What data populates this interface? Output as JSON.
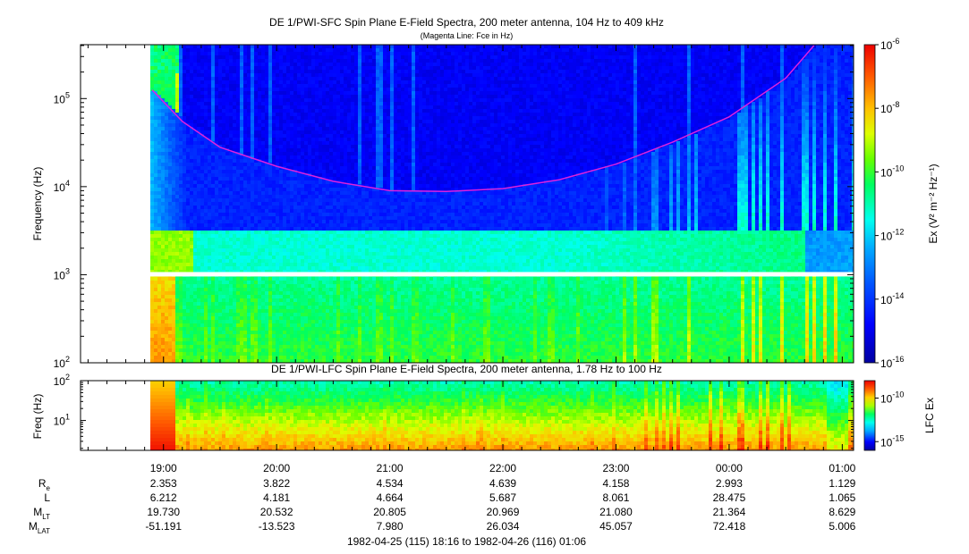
{
  "main_plot": {
    "title": "DE 1/PWI-SFC  Spin Plane E-Field Spectra, 200 meter antenna, 104 Hz to 409 kHz",
    "subtitle": "(Magenta Line: Fce in Hz)",
    "ylabel": "Frequency (Hz)",
    "colorbar_label": "Ex (V² m⁻² Hz⁻¹)",
    "y_ticks": [
      {
        "base": "10",
        "exp": "2"
      },
      {
        "base": "10",
        "exp": "3"
      },
      {
        "base": "10",
        "exp": "4"
      },
      {
        "base": "10",
        "exp": "5"
      }
    ],
    "colorbar_ticks": [
      {
        "base": "10",
        "exp": "-6"
      },
      {
        "base": "10",
        "exp": "-8"
      },
      {
        "base": "10",
        "exp": "-10"
      },
      {
        "base": "10",
        "exp": "-12"
      },
      {
        "base": "10",
        "exp": "-14"
      },
      {
        "base": "10",
        "exp": "-16"
      }
    ]
  },
  "lfc_plot": {
    "title": "DE 1/PWI-LFC  Spin Plane E-Field Spectra, 200 meter antenna, 1.78 Hz to 100 Hz",
    "ylabel": "Freq (Hz)",
    "colorbar_label": "LFC Ex",
    "y_ticks": [
      {
        "base": "10",
        "exp": "1"
      },
      {
        "base": "10",
        "exp": "2"
      }
    ],
    "colorbar_ticks": [
      {
        "base": "10",
        "exp": "-10"
      },
      {
        "base": "10",
        "exp": "-15"
      }
    ]
  },
  "time_axis": {
    "ticks": [
      "19:00",
      "20:00",
      "21:00",
      "22:00",
      "23:00",
      "00:00",
      "01:00"
    ],
    "range_label": "1982-04-25 (115) 18:16 to 1982-04-26 (116) 01:06"
  },
  "ephemeris": {
    "labels": [
      {
        "main": "R",
        "sub": "e"
      },
      {
        "main": "L",
        "sub": ""
      },
      {
        "main": "M",
        "sub": "LT"
      },
      {
        "main": "M",
        "sub": "LAT"
      }
    ],
    "rows": [
      [
        "2.353",
        "3.822",
        "4.534",
        "4.639",
        "4.158",
        "2.993",
        "1.129"
      ],
      [
        "6.212",
        "4.181",
        "4.664",
        "5.687",
        "8.061",
        "28.475",
        "1.065"
      ],
      [
        "19.730",
        "20.532",
        "20.805",
        "20.969",
        "21.080",
        "21.364",
        "8.629"
      ],
      [
        "-51.191",
        "-13.523",
        "7.980",
        "26.034",
        "45.057",
        "72.418",
        "5.006"
      ]
    ]
  },
  "chart_data": [
    {
      "type": "heatmap",
      "title": "DE 1/PWI-SFC  Spin Plane E-Field Spectra, 200 meter antenna, 104 Hz to 409 kHz",
      "subtitle": "(Magenta Line: Fce in Hz)",
      "ylabel": "Frequency (Hz)",
      "y_scale": "log",
      "ylim": [
        100,
        409000
      ],
      "x_range": [
        "18:16",
        "01:06"
      ],
      "data_start": "18:53",
      "x_ticks": [
        "19:00",
        "20:00",
        "21:00",
        "22:00",
        "23:00",
        "00:00",
        "01:00"
      ],
      "colorbar": {
        "label": "Ex (V2 m-2 Hz-1)",
        "scale": "log",
        "range": [
          1e-16,
          1e-06
        ]
      },
      "fce_line": {
        "color": "#dd22dd",
        "times": [
          "18:54",
          "19:10",
          "19:30",
          "20:00",
          "20:30",
          "21:00",
          "21:30",
          "22:00",
          "22:30",
          "23:00",
          "23:30",
          "00:00",
          "00:30",
          "00:45"
        ],
        "values_hz": [
          125000,
          55000,
          28000,
          17000,
          11500,
          9000,
          8800,
          9500,
          12000,
          18000,
          32000,
          62000,
          170000,
          400000
        ]
      },
      "data_gap_hz": 1000
    },
    {
      "type": "heatmap",
      "title": "DE 1/PWI-LFC  Spin Plane E-Field Spectra, 200 meter antenna, 1.78 Hz to 100 Hz",
      "ylabel": "Freq (Hz)",
      "y_scale": "log",
      "ylim": [
        1.78,
        100
      ],
      "colorbar": {
        "label": "LFC Ex",
        "scale": "log",
        "range": [
          1e-16,
          1e-08
        ]
      }
    }
  ]
}
